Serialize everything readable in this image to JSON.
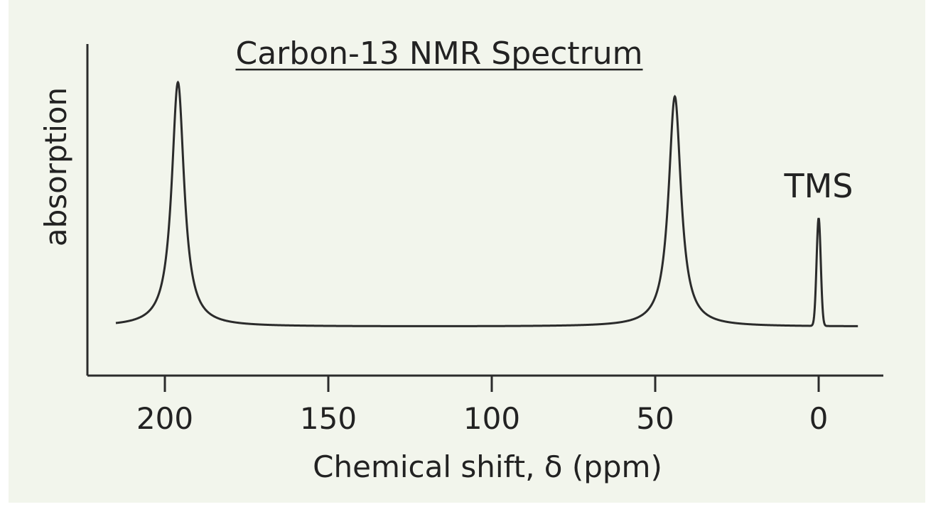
{
  "chart_data": {
    "type": "line",
    "title": "Carbon-13 NMR Spectrum",
    "xlabel": "Chemical shift, δ (ppm)",
    "ylabel": "absorption",
    "xlim": [
      220,
      -10
    ],
    "x_reversed": true,
    "x_ticks": [
      200,
      150,
      100,
      50,
      0
    ],
    "x_tick_labels": [
      "200",
      "150",
      "100",
      "50",
      "0"
    ],
    "ylim": [
      0,
      1
    ],
    "grid": false,
    "legend": "none",
    "series": [
      {
        "peaks": [
          {
            "position": 196,
            "height": 0.86
          },
          {
            "position": 44,
            "height": 0.81
          },
          {
            "position": 0,
            "height": 0.38
          }
        ]
      }
    ],
    "annotations": [
      {
        "text": "TMS",
        "x": 0
      }
    ]
  },
  "colors": {
    "background": "#f2f5ec",
    "ink": "#2b2b2b"
  }
}
